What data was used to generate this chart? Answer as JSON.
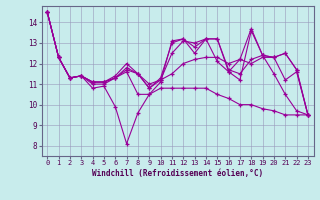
{
  "xlabel": "Windchill (Refroidissement éolien,°C)",
  "xlim": [
    -0.5,
    23.5
  ],
  "ylim": [
    7.5,
    14.8
  ],
  "background_color": "#c8ecec",
  "line_color": "#990099",
  "grid_color": "#9999bb",
  "yticks": [
    8,
    9,
    10,
    11,
    12,
    13,
    14
  ],
  "xticks": [
    0,
    1,
    2,
    3,
    4,
    5,
    6,
    7,
    8,
    9,
    10,
    11,
    12,
    13,
    14,
    15,
    16,
    17,
    18,
    19,
    20,
    21,
    22,
    23
  ],
  "lines": [
    [
      14.5,
      12.3,
      11.3,
      11.4,
      10.8,
      10.9,
      9.9,
      8.1,
      9.6,
      10.5,
      11.1,
      13.1,
      13.2,
      12.8,
      13.2,
      12.1,
      11.6,
      11.2,
      13.6,
      12.4,
      11.5,
      10.5,
      9.7,
      9.5
    ],
    [
      14.5,
      12.3,
      11.3,
      11.4,
      11.1,
      11.1,
      11.3,
      11.7,
      11.5,
      11.0,
      11.2,
      11.5,
      12.0,
      12.2,
      12.3,
      12.3,
      12.0,
      12.2,
      12.0,
      12.3,
      12.3,
      11.2,
      11.6,
      9.5
    ],
    [
      14.5,
      12.3,
      11.3,
      11.4,
      11.1,
      11.1,
      11.3,
      11.8,
      11.5,
      10.8,
      11.2,
      12.5,
      13.1,
      13.0,
      13.2,
      13.2,
      11.6,
      12.2,
      13.7,
      12.4,
      12.3,
      12.5,
      11.7,
      9.5
    ],
    [
      14.5,
      12.3,
      11.3,
      11.4,
      11.1,
      11.1,
      11.4,
      12.0,
      11.5,
      10.8,
      11.3,
      13.0,
      13.2,
      12.5,
      13.2,
      13.2,
      11.7,
      11.5,
      12.2,
      12.4,
      12.3,
      12.5,
      11.7,
      9.5
    ],
    [
      14.5,
      12.3,
      11.3,
      11.4,
      11.0,
      11.0,
      11.3,
      11.6,
      10.5,
      10.5,
      10.8,
      10.8,
      10.8,
      10.8,
      10.8,
      10.5,
      10.3,
      10.0,
      10.0,
      9.8,
      9.7,
      9.5,
      9.5,
      9.5
    ]
  ]
}
